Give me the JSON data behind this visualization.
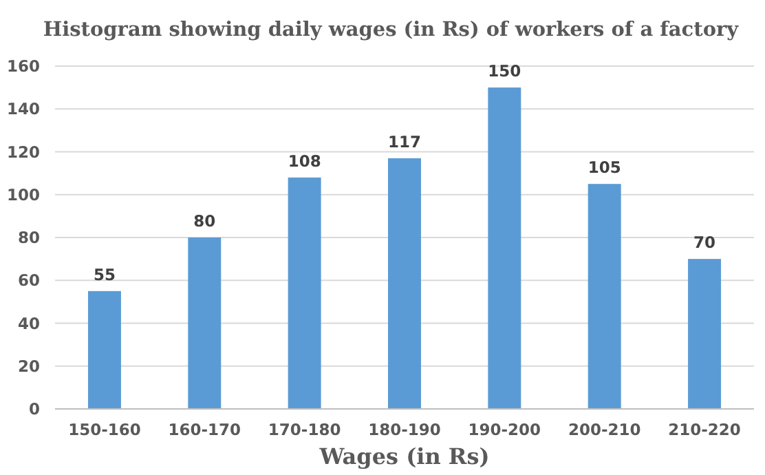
{
  "chart_data": {
    "type": "bar",
    "title": "Histogram showing daily wages (in Rs) of workers of a factory",
    "xlabel": "Wages (in Rs)",
    "categories": [
      "150-160",
      "160-170",
      "170-180",
      "180-190",
      "190-200",
      "200-210",
      "210-220"
    ],
    "values": [
      55,
      80,
      108,
      117,
      150,
      105,
      70
    ],
    "color": "#5b9bd5",
    "ylim": [
      0,
      160
    ],
    "yticks": [
      0,
      20,
      40,
      60,
      80,
      100,
      120,
      140,
      160
    ],
    "grid": "y",
    "data_labels": true
  }
}
